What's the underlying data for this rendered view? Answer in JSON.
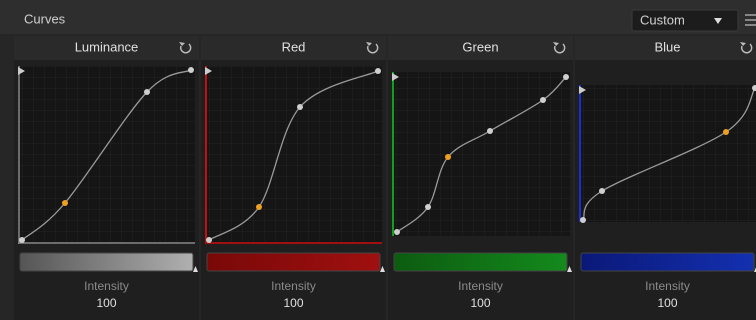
{
  "header": {
    "title": "Curves",
    "preset": "Custom"
  },
  "panels": [
    {
      "name": "Luminance",
      "label": "Intensity",
      "value": "100"
    },
    {
      "name": "Red",
      "label": "Intensity",
      "value": "100"
    },
    {
      "name": "Green",
      "label": "Intensity",
      "value": "100"
    },
    {
      "name": "Blue",
      "label": "Intensity",
      "value": "100"
    }
  ]
}
